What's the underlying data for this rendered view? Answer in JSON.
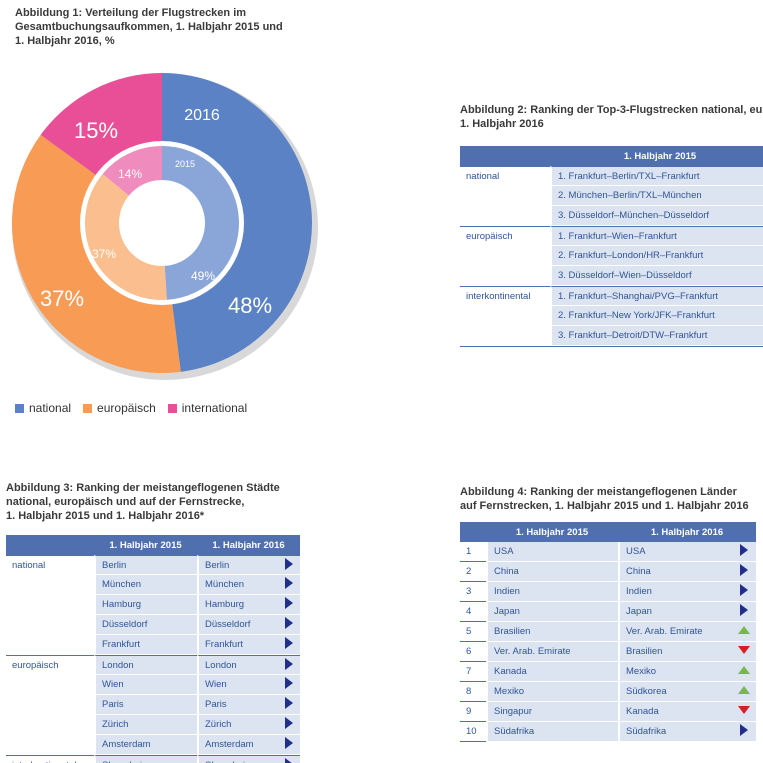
{
  "fig1": {
    "title": "Abbildung 1: Verteilung der Flugstrecken im\nGesamtbuchungsaufkommen, 1. Halbjahr 2015 und\n1. Halbjahr 2016, %",
    "outer_label": "2016",
    "inner_label": "2015",
    "legend": [
      {
        "label": "national",
        "color": "#5b82c4"
      },
      {
        "label": "europäisch",
        "color": "#f79b55"
      },
      {
        "label": "international",
        "color": "#e84f96"
      }
    ]
  },
  "chart_data": {
    "type": "pie",
    "series": [
      {
        "name": "2016",
        "categories": [
          "national",
          "europäisch",
          "international"
        ],
        "values": [
          48,
          37,
          15
        ],
        "labels": [
          "48%",
          "37%",
          "15%"
        ]
      },
      {
        "name": "2015",
        "categories": [
          "national",
          "europäisch",
          "international"
        ],
        "values": [
          49,
          37,
          14
        ],
        "labels": [
          "49%",
          "37%",
          "14%"
        ]
      }
    ],
    "colors_outer": [
      "#5b82c4",
      "#f79b55",
      "#e84f96"
    ],
    "colors_inner": [
      "#8aa6d8",
      "#fbbe8e",
      "#f08cbd"
    ]
  },
  "fig2": {
    "title": "Abbildung 2: Ranking der Top-3-Flugstrecken national, eu\n1. Halbjahr 2016",
    "header": "1. Halbjahr 2015",
    "groups": [
      {
        "category": "national",
        "rows": [
          "1. Frankfurt–Berlin/TXL–Frankfurt",
          "2. München–Berlin/TXL–München",
          "3. Düsseldorf–München–Düsseldorf"
        ]
      },
      {
        "category": "europäisch",
        "rows": [
          "1. Frankfurt–Wien–Frankfurt",
          "2. Frankfurt–London/HR–Frankfurt",
          "3. Düsseldorf–Wien–Düsseldorf"
        ]
      },
      {
        "category": "interkontinental",
        "rows": [
          "1. Frankfurt–Shanghai/PVG–Frankfurt",
          "2. Frankfurt–New York/JFK–Frankfurt",
          "3. Frankfurt–Detroit/DTW–Frankfurt"
        ]
      }
    ]
  },
  "fig3": {
    "title": "Abbildung 3: Ranking der meistangeflogenen Städte\nnational, europäisch und auf der Fernstrecke,\n1. Halbjahr 2015 und 1. Halbjahr 2016*",
    "headers": [
      "1. Halbjahr 2015",
      "1. Halbjahr 2016"
    ],
    "groups": [
      {
        "category": "national",
        "rows": [
          [
            "Berlin",
            "Berlin"
          ],
          [
            "München",
            "München"
          ],
          [
            "Hamburg",
            "Hamburg"
          ],
          [
            "Düsseldorf",
            "Düsseldorf"
          ],
          [
            "Frankfurt",
            "Frankfurt"
          ]
        ]
      },
      {
        "category": "europäisch",
        "rows": [
          [
            "London",
            "London"
          ],
          [
            "Wien",
            "Wien"
          ],
          [
            "Paris",
            "Paris"
          ],
          [
            "Zürich",
            "Zürich"
          ],
          [
            "Amsterdam",
            "Amsterdam"
          ]
        ]
      },
      {
        "category": "interkontinental",
        "rows": [
          [
            "Shanghai",
            "Shanghai"
          ]
        ]
      }
    ]
  },
  "fig4": {
    "title": "Abbildung 4: Ranking der meistangeflogenen Länder\nauf Fernstrecken, 1. Halbjahr 2015 und 1. Halbjahr 2016",
    "headers": [
      "1. Halbjahr 2015",
      "1. Halbjahr 2016"
    ],
    "rows": [
      {
        "rank": "1",
        "y2015": "USA",
        "y2016": "USA",
        "trend": "same"
      },
      {
        "rank": "2",
        "y2015": "China",
        "y2016": "China",
        "trend": "same"
      },
      {
        "rank": "3",
        "y2015": "Indien",
        "y2016": "Indien",
        "trend": "same"
      },
      {
        "rank": "4",
        "y2015": "Japan",
        "y2016": "Japan",
        "trend": "same"
      },
      {
        "rank": "5",
        "y2015": "Brasilien",
        "y2016": "Ver. Arab. Emirate",
        "trend": "up"
      },
      {
        "rank": "6",
        "y2015": "Ver. Arab. Emirate",
        "y2016": "Brasilien",
        "trend": "down"
      },
      {
        "rank": "7",
        "y2015": "Kanada",
        "y2016": "Mexiko",
        "trend": "up"
      },
      {
        "rank": "8",
        "y2015": "Mexiko",
        "y2016": "Südkorea",
        "trend": "up"
      },
      {
        "rank": "9",
        "y2015": "Singapur",
        "y2016": "Kanada",
        "trend": "down"
      },
      {
        "rank": "10",
        "y2015": "Südafrika",
        "y2016": "Südafrika",
        "trend": "same"
      }
    ]
  }
}
